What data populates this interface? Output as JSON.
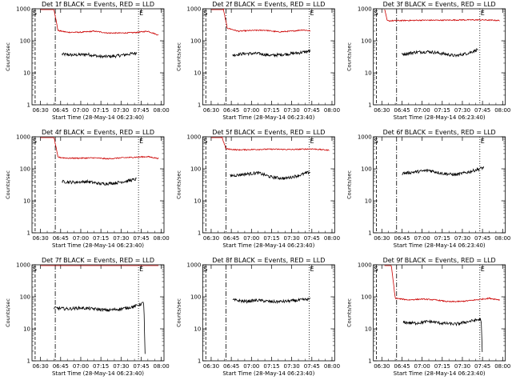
{
  "chart_data": [
    {
      "type": "line",
      "title": "Det 1f BLACK = Events, RED = LLD",
      "ylabel": "Counts/sec",
      "xlabel": "Start Time (28-May-14 06:23:40)",
      "yscale": "log",
      "ylim": [
        1,
        1000
      ],
      "xticks": [
        "06:30",
        "06:45",
        "07:00",
        "07:15",
        "07:30",
        "07:45",
        "08:00"
      ],
      "markers": [
        "S",
        "E"
      ],
      "series": [
        {
          "name": "Events",
          "color": "#000000",
          "start": "06:46",
          "end": "07:42",
          "points": [
            [
              "06:46",
              38
            ],
            [
              "06:55",
              36
            ],
            [
              "07:05",
              38
            ],
            [
              "07:15",
              32
            ],
            [
              "07:25",
              33
            ],
            [
              "07:35",
              38
            ],
            [
              "07:42",
              42
            ]
          ]
        },
        {
          "name": "LLD",
          "color": "#cc0000",
          "start": "06:30",
          "end": "07:58",
          "points": [
            [
              "06:30",
              1000
            ],
            [
              "06:40",
              1000
            ],
            [
              "06:43",
              210
            ],
            [
              "06:50",
              185
            ],
            [
              "07:00",
              185
            ],
            [
              "07:10",
              200
            ],
            [
              "07:20",
              175
            ],
            [
              "07:30",
              175
            ],
            [
              "07:40",
              180
            ],
            [
              "07:50",
              200
            ],
            [
              "07:58",
              150
            ]
          ]
        }
      ]
    },
    {
      "type": "line",
      "title": "Det 2f BLACK = Events, RED = LLD",
      "ylabel": "Counts/sec",
      "xlabel": "Start Time (28-May-14 06:23:40)",
      "yscale": "log",
      "ylim": [
        1,
        1000
      ],
      "xticks": [
        "06:30",
        "06:45",
        "07:00",
        "07:15",
        "07:30",
        "07:45",
        "08:00"
      ],
      "markers": [
        "S",
        "E"
      ],
      "series": [
        {
          "name": "Events",
          "color": "#000000",
          "start": "06:46",
          "end": "07:44",
          "points": [
            [
              "06:46",
              36
            ],
            [
              "06:55",
              40
            ],
            [
              "07:05",
              40
            ],
            [
              "07:15",
              35
            ],
            [
              "07:25",
              38
            ],
            [
              "07:35",
              42
            ],
            [
              "07:44",
              48
            ]
          ]
        },
        {
          "name": "LLD",
          "color": "#cc0000",
          "start": "06:30",
          "end": "07:44",
          "points": [
            [
              "06:30",
              1000
            ],
            [
              "06:39",
              1000
            ],
            [
              "06:42",
              250
            ],
            [
              "06:50",
              200
            ],
            [
              "07:00",
              210
            ],
            [
              "07:10",
              215
            ],
            [
              "07:20",
              190
            ],
            [
              "07:30",
              200
            ],
            [
              "07:38",
              220
            ],
            [
              "07:44",
              205
            ]
          ]
        }
      ]
    },
    {
      "type": "line",
      "title": "Det 3f BLACK = Events, RED = LLD",
      "ylabel": "Counts/sec",
      "xlabel": "Start Time (28-May-14 06:23:40)",
      "yscale": "log",
      "ylim": [
        1,
        1000
      ],
      "xticks": [
        "06:30",
        "06:45",
        "07:00",
        "07:15",
        "07:30",
        "07:45",
        "08:00"
      ],
      "markers": [
        "S",
        "E"
      ],
      "series": [
        {
          "name": "Events",
          "color": "#000000",
          "start": "06:45",
          "end": "07:42",
          "points": [
            [
              "06:45",
              38
            ],
            [
              "06:55",
              44
            ],
            [
              "07:05",
              46
            ],
            [
              "07:15",
              40
            ],
            [
              "07:25",
              34
            ],
            [
              "07:35",
              42
            ],
            [
              "07:42",
              55
            ]
          ]
        },
        {
          "name": "LLD",
          "color": "#cc0000",
          "start": "06:32",
          "end": "07:58",
          "points": [
            [
              "06:32",
              1000
            ],
            [
              "06:34",
              420
            ],
            [
              "06:45",
              430
            ],
            [
              "07:00",
              440
            ],
            [
              "07:15",
              440
            ],
            [
              "07:30",
              450
            ],
            [
              "07:45",
              450
            ],
            [
              "07:58",
              430
            ]
          ]
        }
      ]
    },
    {
      "type": "line",
      "title": "Det 4f BLACK = Events, RED = LLD",
      "ylabel": "Counts/sec",
      "xlabel": "Start Time (28-May-14 06:23:40)",
      "yscale": "log",
      "ylim": [
        1,
        1000
      ],
      "xticks": [
        "06:30",
        "06:45",
        "07:00",
        "07:15",
        "07:30",
        "07:45",
        "08:00"
      ],
      "markers": [
        "S",
        "E"
      ],
      "series": [
        {
          "name": "Events",
          "color": "#000000",
          "start": "06:46",
          "end": "07:42",
          "points": [
            [
              "06:46",
              40
            ],
            [
              "06:55",
              38
            ],
            [
              "07:05",
              40
            ],
            [
              "07:15",
              34
            ],
            [
              "07:25",
              36
            ],
            [
              "07:35",
              42
            ],
            [
              "07:42",
              48
            ]
          ]
        },
        {
          "name": "LLD",
          "color": "#cc0000",
          "start": "06:30",
          "end": "07:58",
          "points": [
            [
              "06:30",
              1000
            ],
            [
              "06:40",
              1000
            ],
            [
              "06:43",
              230
            ],
            [
              "06:50",
              215
            ],
            [
              "07:00",
              215
            ],
            [
              "07:10",
              220
            ],
            [
              "07:20",
              205
            ],
            [
              "07:30",
              220
            ],
            [
              "07:40",
              230
            ],
            [
              "07:50",
              240
            ],
            [
              "07:58",
              210
            ]
          ]
        }
      ]
    },
    {
      "type": "line",
      "title": "Det 5f BLACK = Events, RED = LLD",
      "ylabel": "Counts/sec",
      "xlabel": "Start Time (28-May-14 06:23:40)",
      "yscale": "log",
      "ylim": [
        1,
        1000
      ],
      "xticks": [
        "06:30",
        "06:45",
        "07:00",
        "07:15",
        "07:30",
        "07:45",
        "08:00"
      ],
      "markers": [
        "S",
        "E"
      ],
      "series": [
        {
          "name": "Events",
          "color": "#000000",
          "start": "06:44",
          "end": "07:44",
          "points": [
            [
              "06:44",
              60
            ],
            [
              "06:55",
              68
            ],
            [
              "07:05",
              75
            ],
            [
              "07:15",
              55
            ],
            [
              "07:25",
              50
            ],
            [
              "07:35",
              62
            ],
            [
              "07:44",
              80
            ]
          ]
        },
        {
          "name": "LLD",
          "color": "#cc0000",
          "start": "06:30",
          "end": "07:58",
          "points": [
            [
              "06:30",
              1000
            ],
            [
              "06:38",
              1000
            ],
            [
              "06:41",
              420
            ],
            [
              "06:50",
              390
            ],
            [
              "07:00",
              400
            ],
            [
              "07:15",
              410
            ],
            [
              "07:30",
              400
            ],
            [
              "07:45",
              420
            ],
            [
              "07:58",
              380
            ]
          ]
        }
      ]
    },
    {
      "type": "line",
      "title": "Det 6f BLACK = Events, RED = LLD",
      "ylabel": "Counts/sec",
      "xlabel": "Start Time (28-May-14 06:23:40)",
      "yscale": "log",
      "ylim": [
        1,
        1000
      ],
      "xticks": [
        "06:30",
        "06:45",
        "07:00",
        "07:15",
        "07:30",
        "07:45",
        "08:00"
      ],
      "markers": [
        "S",
        "E"
      ],
      "series": [
        {
          "name": "Events",
          "color": "#000000",
          "start": "06:45",
          "end": "07:46",
          "points": [
            [
              "06:45",
              72
            ],
            [
              "06:55",
              80
            ],
            [
              "07:05",
              90
            ],
            [
              "07:15",
              72
            ],
            [
              "07:25",
              65
            ],
            [
              "07:35",
              80
            ],
            [
              "07:46",
              110
            ]
          ]
        }
      ]
    },
    {
      "type": "line",
      "title": "Det 7f BLACK = Events, RED = LLD",
      "ylabel": "Counts/sec",
      "xlabel": "Start Time (28-May-14 06:23:40)",
      "yscale": "log",
      "ylim": [
        1,
        1000
      ],
      "xticks": [
        "06:30",
        "06:45",
        "07:00",
        "07:15",
        "07:30",
        "07:45",
        "08:00"
      ],
      "markers": [
        "S",
        "E"
      ],
      "series": [
        {
          "name": "Events",
          "color": "#000000",
          "start": "06:40",
          "end": "07:48",
          "points": [
            [
              "06:40",
              45
            ],
            [
              "06:50",
              42
            ],
            [
              "07:00",
              45
            ],
            [
              "07:10",
              42
            ],
            [
              "07:20",
              38
            ],
            [
              "07:30",
              42
            ],
            [
              "07:40",
              50
            ],
            [
              "07:47",
              65
            ],
            [
              "07:48",
              1
            ]
          ]
        },
        {
          "name": "LLD",
          "color": "#cc0000",
          "start": "06:30",
          "end": "07:58",
          "points": [
            [
              "06:30",
              1000
            ],
            [
              "06:45",
              1000
            ],
            [
              "07:00",
              1000
            ],
            [
              "07:15",
              1000
            ],
            [
              "07:30",
              1000
            ],
            [
              "07:45",
              1000
            ],
            [
              "07:58",
              1000
            ]
          ]
        }
      ]
    },
    {
      "type": "line",
      "title": "Det 8f BLACK = Events, RED = LLD",
      "ylabel": "Counts/sec",
      "xlabel": "Start Time (28-May-14 06:23:40)",
      "yscale": "log",
      "ylim": [
        1,
        1000
      ],
      "xticks": [
        "06:30",
        "06:45",
        "07:00",
        "07:15",
        "07:30",
        "07:45",
        "08:00"
      ],
      "markers": [
        "S",
        "E"
      ],
      "series": [
        {
          "name": "Events",
          "color": "#000000",
          "start": "06:46",
          "end": "07:44",
          "points": [
            [
              "06:46",
              80
            ],
            [
              "06:55",
              72
            ],
            [
              "07:05",
              78
            ],
            [
              "07:15",
              70
            ],
            [
              "07:25",
              72
            ],
            [
              "07:35",
              78
            ],
            [
              "07:44",
              85
            ]
          ]
        }
      ]
    },
    {
      "type": "line",
      "title": "Det 9f BLACK = Events, RED = LLD",
      "ylabel": "Counts/sec",
      "xlabel": "Start Time (28-May-14 06:23:40)",
      "yscale": "log",
      "ylim": [
        1,
        1000
      ],
      "xticks": [
        "06:30",
        "06:45",
        "07:00",
        "07:15",
        "07:30",
        "07:45",
        "08:00"
      ],
      "markers": [
        "S",
        "E"
      ],
      "series": [
        {
          "name": "Events",
          "color": "#000000",
          "start": "06:46",
          "end": "07:45",
          "points": [
            [
              "06:46",
              16
            ],
            [
              "06:55",
              15
            ],
            [
              "07:05",
              17
            ],
            [
              "07:15",
              15
            ],
            [
              "07:25",
              14
            ],
            [
              "07:35",
              17
            ],
            [
              "07:44",
              20
            ],
            [
              "07:45",
              1
            ]
          ]
        },
        {
          "name": "LLD",
          "color": "#cc0000",
          "start": "06:32",
          "end": "07:58",
          "points": [
            [
              "06:32",
              1000
            ],
            [
              "06:37",
              1000
            ],
            [
              "06:40",
              90
            ],
            [
              "06:50",
              80
            ],
            [
              "07:00",
              85
            ],
            [
              "07:10",
              80
            ],
            [
              "07:20",
              70
            ],
            [
              "07:30",
              72
            ],
            [
              "07:40",
              80
            ],
            [
              "07:50",
              90
            ],
            [
              "07:58",
              80
            ]
          ]
        }
      ]
    }
  ]
}
